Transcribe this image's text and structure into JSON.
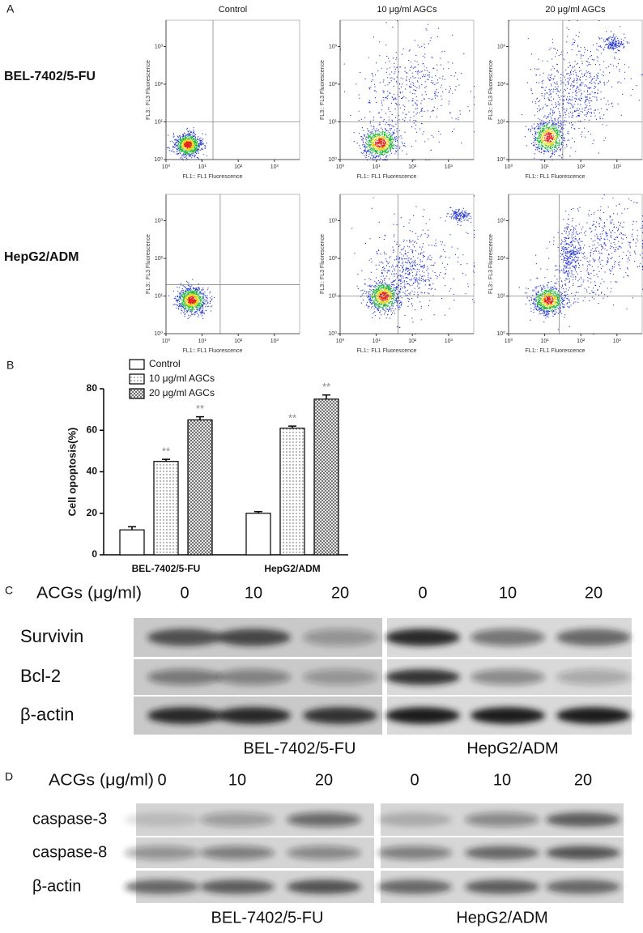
{
  "panel_labels": [
    "A",
    "B",
    "C",
    "D"
  ],
  "flow_cytometry": {
    "row_labels": [
      "BEL-7402/5-FU",
      "HepG2/ADM"
    ],
    "column_titles": [
      "Control",
      "10 μg/ml AGCs",
      "20 μg/ml AGCs"
    ],
    "xlabel": "FL1:: FL1 Fluorescence",
    "ylabel": "FL3:: FL3 Fluorescence",
    "log": true,
    "xlim": [
      1,
      5000
    ],
    "ylim": [
      1,
      5000
    ],
    "xticks": [
      {
        "value": 1,
        "label": "10⁰"
      },
      {
        "value": 10,
        "label": "10¹"
      },
      {
        "value": 100,
        "label": "10²"
      },
      {
        "value": 1000,
        "label": "10³"
      }
    ],
    "yticks": [
      {
        "value": 1,
        "label": "10⁰"
      },
      {
        "value": 10,
        "label": "10¹"
      },
      {
        "value": 100,
        "label": "10²"
      },
      {
        "value": 1000,
        "label": "10³"
      }
    ]
  },
  "chart_data": {
    "type": "bar",
    "ylabel": "Cell opoptosis(%)",
    "categories": [
      "BEL-7402/5-FU",
      "HepG2/ADM"
    ],
    "series": [
      {
        "name": "Control",
        "color": "#ffffff",
        "pattern": "none",
        "values": [
          12,
          20
        ],
        "errors": [
          1.5,
          0.8
        ]
      },
      {
        "name": "10 μg/ml AGCs",
        "color": "#ffffff",
        "pattern": "dots",
        "values": [
          45,
          61
        ],
        "errors": [
          1,
          1
        ],
        "significance": [
          "**",
          "**"
        ]
      },
      {
        "name": "20 μg/ml AGCs",
        "color": "#ffffff",
        "pattern": "crosshatch",
        "values": [
          65,
          75
        ],
        "errors": [
          1.5,
          2
        ],
        "significance": [
          "**",
          "**"
        ]
      }
    ],
    "ylim": [
      0,
      80
    ],
    "yticks": [
      0,
      20,
      40,
      60,
      80
    ]
  },
  "western_blots": [
    {
      "dose_label": "ACGs (μg/ml)",
      "doses": [
        "0",
        "10",
        "20"
      ],
      "proteins": [
        "Survivin",
        "Bcl-2",
        "β-actin"
      ],
      "cell_lines": [
        "BEL-7402/5-FU",
        "HepG2/ADM"
      ]
    },
    {
      "dose_label": "ACGs (μg/ml)",
      "doses": [
        "0",
        "10",
        "20"
      ],
      "proteins": [
        "caspase-3",
        "caspase-8",
        "β-actin"
      ],
      "cell_lines": [
        "BEL-7402/5-FU",
        "HepG2/ADM"
      ]
    }
  ]
}
